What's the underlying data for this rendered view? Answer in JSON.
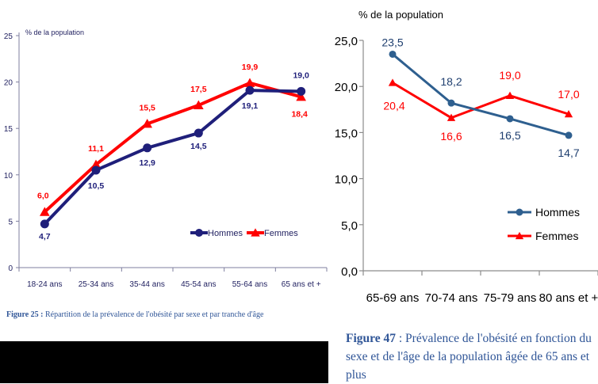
{
  "chart_data": [
    {
      "type": "line",
      "ylabel": "% de la population",
      "ylim": [
        0,
        25
      ],
      "yticks": [
        "0",
        "5",
        "10",
        "15",
        "20",
        "25"
      ],
      "categories": [
        "18-24 ans",
        "25-34 ans",
        "35-44 ans",
        "45-54 ans",
        "55-64 ans",
        "65 ans et +"
      ],
      "series": [
        {
          "name": "Hommes",
          "color": "#1f1f7a",
          "marker": "circle",
          "values": [
            4.7,
            10.5,
            12.9,
            14.5,
            19.1,
            19.0
          ],
          "labels": [
            "4,7",
            "10,5",
            "12,9",
            "14,5",
            "19,1",
            "19,0"
          ]
        },
        {
          "name": "Femmes",
          "color": "#ff0000",
          "marker": "triangle",
          "values": [
            6.0,
            11.1,
            15.5,
            17.5,
            19.9,
            18.4
          ],
          "labels": [
            "6,0",
            "11,1",
            "15,5",
            "17,5",
            "19,9",
            "18,4"
          ]
        }
      ],
      "legend": "bottom-right",
      "caption_prefix": "Figure 25 :",
      "caption": " Répartition de la prévalence de l'obésité par sexe et par tranche d'âge"
    },
    {
      "type": "line",
      "ylabel": "% de la population",
      "ylim": [
        0,
        25
      ],
      "yticks": [
        "0,0",
        "5,0",
        "10,0",
        "15,0",
        "20,0",
        "25,0"
      ],
      "categories": [
        "65-69 ans",
        "70-74 ans",
        "75-79 ans",
        "80 ans et +"
      ],
      "series": [
        {
          "name": "Hommes",
          "color": "#2e5f8f",
          "marker": "circle",
          "values": [
            23.5,
            18.2,
            16.5,
            14.7
          ],
          "labels": [
            "23,5",
            "18,2",
            "16,5",
            "14,7"
          ]
        },
        {
          "name": "Femmes",
          "color": "#ff0000",
          "marker": "triangle",
          "values": [
            20.4,
            16.6,
            19.0,
            17.0
          ],
          "labels": [
            "20,4",
            "16,6",
            "19,0",
            "17,0"
          ]
        }
      ],
      "legend": "right",
      "caption_prefix": "Figure 47",
      "caption": " : Prévalence de l'obésité en fonction du sexe et de l'âge de la population âgée de 65 ans et plus"
    }
  ]
}
